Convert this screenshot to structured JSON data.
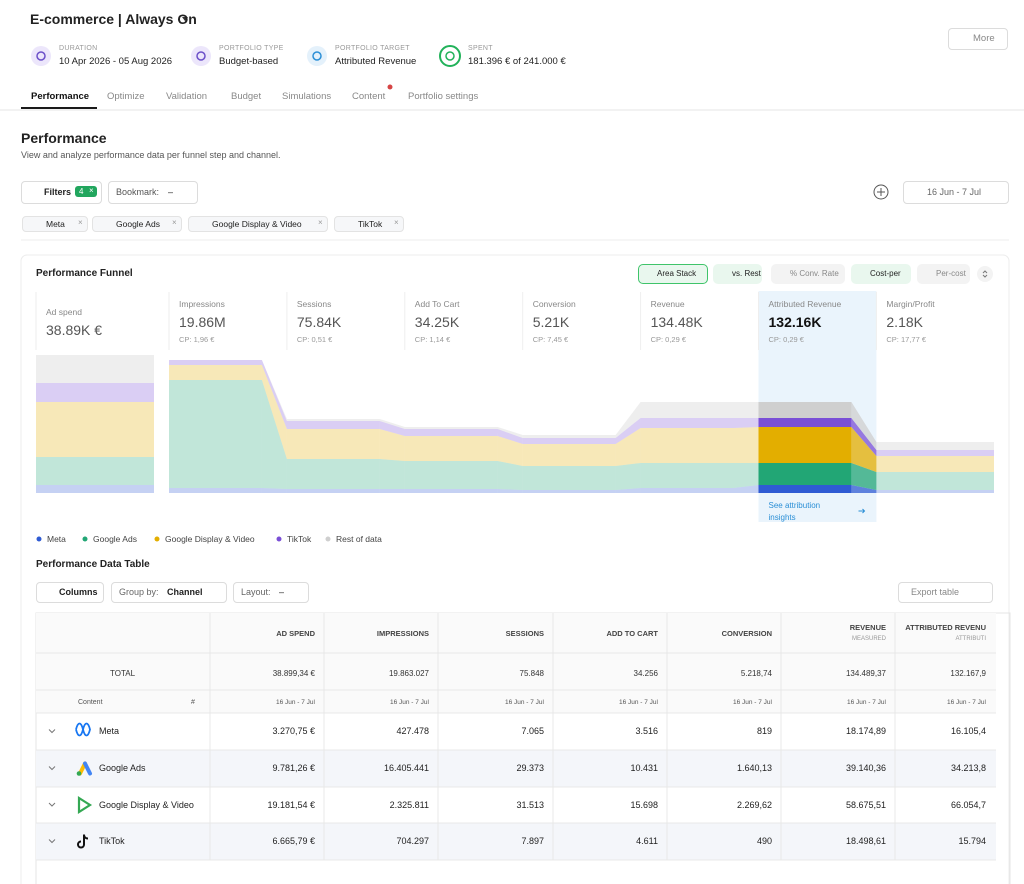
{
  "header": {
    "title": "E-commerce | Always On",
    "more": "More"
  },
  "meta": [
    {
      "label": "DURATION",
      "value": "10 Apr 2026 - 05 Aug 2026"
    },
    {
      "label": "PORTFOLIO TYPE",
      "value": "Budget-based"
    },
    {
      "label": "PORTFOLIO TARGET",
      "value": "Attributed Revenue"
    },
    {
      "label": "SPENT",
      "value": "181.396 € of 241.000 €"
    }
  ],
  "tabs": [
    {
      "label": "Performance",
      "active": true
    },
    {
      "label": "Optimize",
      "active": false
    },
    {
      "label": "Validation",
      "active": false
    },
    {
      "label": "Budget",
      "active": false
    },
    {
      "label": "Simulations",
      "active": false
    },
    {
      "label": "Content",
      "active": false
    },
    {
      "label": "Portfolio settings",
      "active": false
    }
  ],
  "section": {
    "title": "Performance",
    "subtitle": "View and analyze performance data per funnel step and channel."
  },
  "toolbar": {
    "filters": "Filters",
    "filter_count": "4",
    "bookmark": "Bookmark:",
    "bookmark_value": "–",
    "date": "16 Jun - 7 Jul"
  },
  "chips": [
    "Meta",
    "Google Ads",
    "Google Display & Video",
    "TikTok"
  ],
  "toggles": [
    {
      "label": "Area Stack",
      "on": true
    },
    {
      "label": "vs. Rest",
      "on": true
    },
    {
      "label": "% Conv. Rate",
      "on": false
    },
    {
      "label": "Cost-per",
      "on": true
    },
    {
      "label": "Per-cost",
      "on": false
    }
  ],
  "chart_data": {
    "type": "area",
    "title": "Performance Funnel",
    "categories": [
      "Ad spend",
      "Impressions",
      "Sessions",
      "Add To Cart",
      "Conversion",
      "Revenue",
      "Attributed Revenue",
      "Margin/Profit"
    ],
    "headline": [
      "38.89K €",
      "19.86M",
      "75.84K",
      "34.25K",
      "5.21K",
      "134.48K",
      "132.16K",
      "2.18K"
    ],
    "cost_per": [
      null,
      "CP: 1,96 €",
      "CP: 0,51 €",
      "CP: 1,14 €",
      "CP: 7,45 €",
      "CP: 0,29 €",
      "CP: 0,29 €",
      "CP: 17,77 €"
    ],
    "highlighted": [
      false,
      false,
      false,
      false,
      false,
      false,
      true,
      false
    ],
    "link": "See attribution insights",
    "ylim": [
      0,
      140
    ],
    "series": [
      {
        "name": "Meta",
        "color": "#2f5bd3",
        "values": [
          8,
          5,
          4,
          4,
          3,
          5,
          8,
          3
        ]
      },
      {
        "name": "Google Ads",
        "color": "#22a675",
        "values": [
          28,
          108,
          30,
          28,
          24,
          25,
          22,
          18
        ]
      },
      {
        "name": "Google Display & Video",
        "color": "#e3ae00",
        "values": [
          55,
          15,
          30,
          25,
          22,
          35,
          36,
          16
        ]
      },
      {
        "name": "TikTok",
        "color": "#7a4fd6",
        "values": [
          19,
          5,
          8,
          7,
          6,
          10,
          9,
          6
        ]
      },
      {
        "name": "Rest of data",
        "color": "#cfcfcf",
        "values": [
          28,
          0,
          2,
          2,
          3,
          16,
          16,
          8
        ]
      }
    ]
  },
  "table": {
    "title": "Performance Data Table",
    "columns_btn": "Columns",
    "group_label": "Group by:",
    "group_value": "Channel",
    "layout_label": "Layout:",
    "layout_value": "–",
    "export": "Export table",
    "columns": [
      {
        "label": "AD SPEND",
        "sub": null
      },
      {
        "label": "IMPRESSIONS",
        "sub": null
      },
      {
        "label": "SESSIONS",
        "sub": null
      },
      {
        "label": "ADD TO CART",
        "sub": null
      },
      {
        "label": "CONVERSION",
        "sub": null
      },
      {
        "label": "REVENUE",
        "sub": "MEASURED"
      },
      {
        "label": "ATTRIBUTED REVENU",
        "sub": "ATTRIBUTI"
      }
    ],
    "total_label": "TOTAL",
    "totals": [
      "38.899,34 €",
      "19.863.027",
      "75.848",
      "34.256",
      "5.218,74",
      "134.489,37",
      "132.167,9"
    ],
    "content_label": "Content",
    "hash": "#",
    "date": "16 Jun - 7 Jul",
    "rows": [
      {
        "name": "Meta",
        "values": [
          "3.270,75 €",
          "427.478",
          "7.065",
          "3.516",
          "819",
          "18.174,89",
          "16.105,4"
        ]
      },
      {
        "name": "Google Ads",
        "values": [
          "9.781,26 €",
          "16.405.441",
          "29.373",
          "10.431",
          "1.640,13",
          "39.140,36",
          "34.213,8"
        ]
      },
      {
        "name": "Google Display & Video",
        "values": [
          "19.181,54 €",
          "2.325.811",
          "31.513",
          "15.698",
          "2.269,62",
          "58.675,51",
          "66.054,7"
        ]
      },
      {
        "name": "TikTok",
        "values": [
          "6.665,79 €",
          "704.297",
          "7.897",
          "4.611",
          "490",
          "18.498,61",
          "15.794"
        ]
      }
    ]
  }
}
